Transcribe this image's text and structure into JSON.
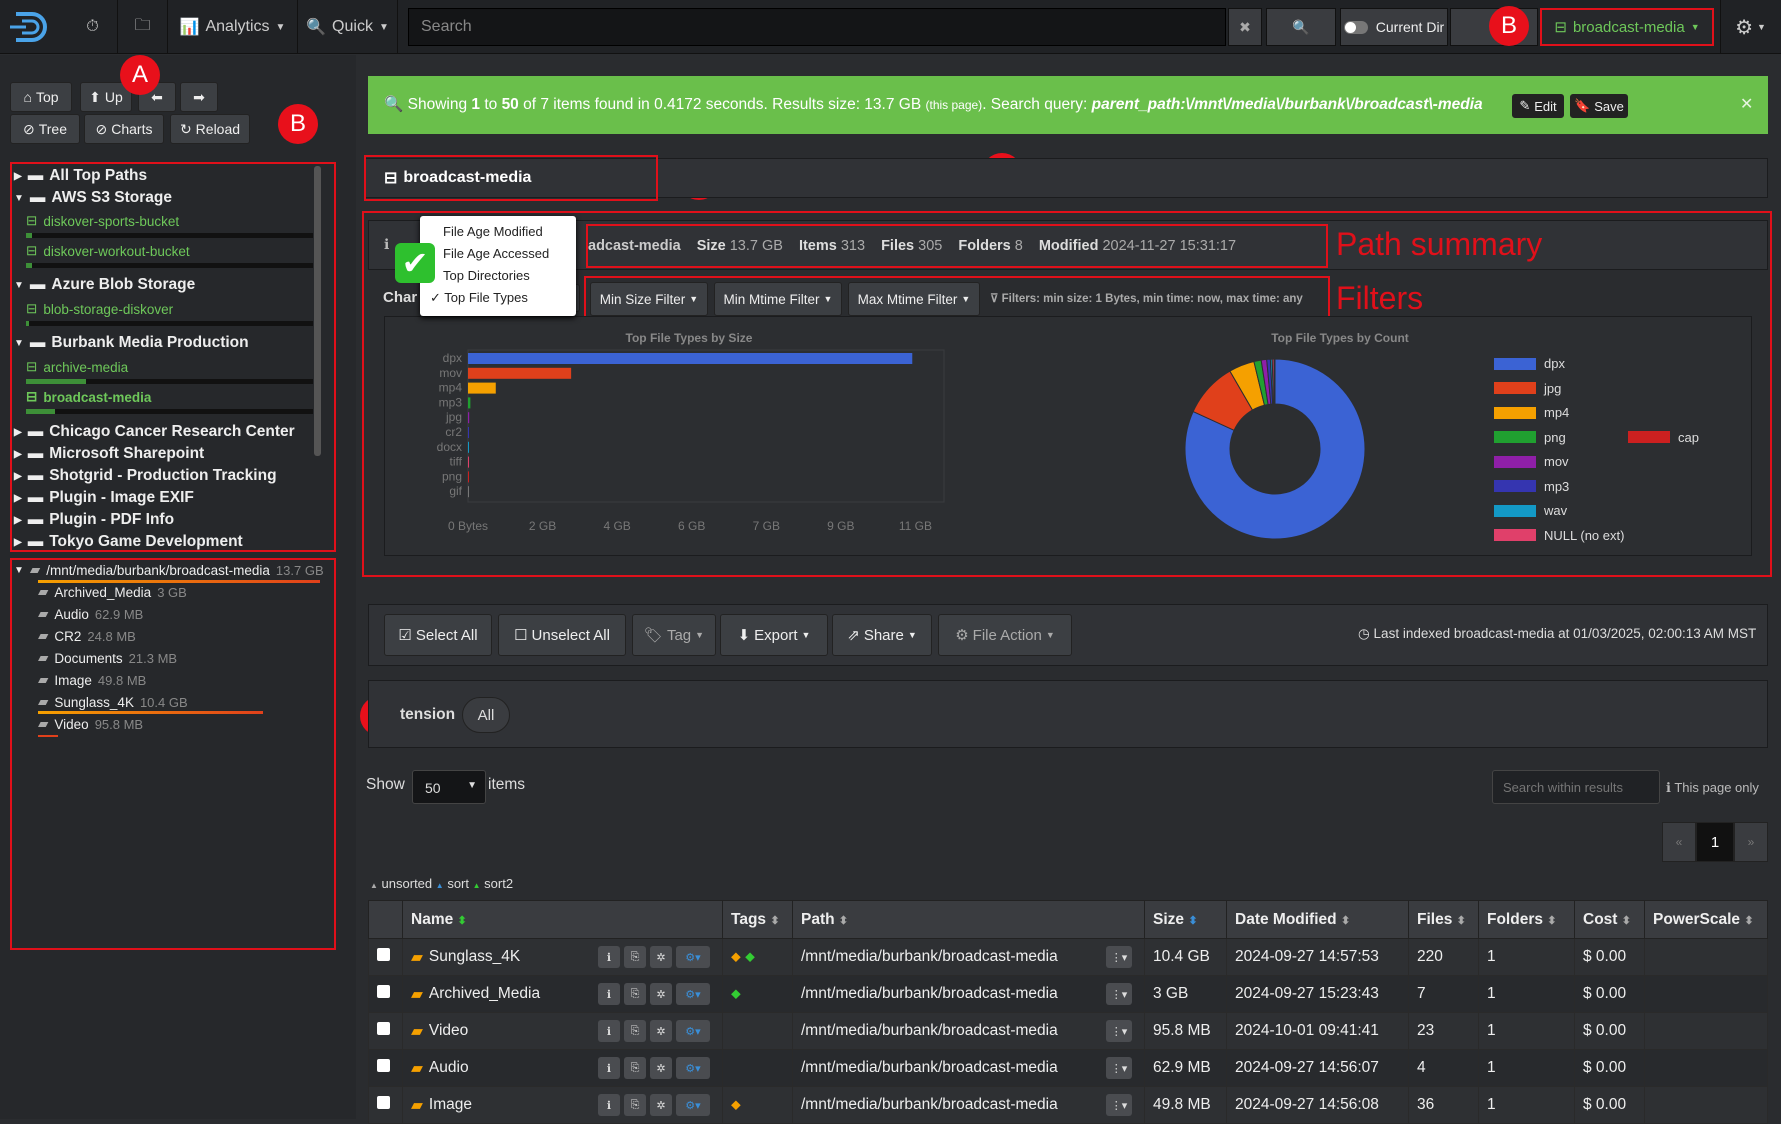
{
  "topbar": {
    "analytics": "Analytics",
    "quick": "Quick",
    "search_placeholder": "Search",
    "current_dir": "Current Dir",
    "index_select": "broadcast-media"
  },
  "sidebar": {
    "buttons": {
      "top": "Top",
      "up": "Up",
      "tree": "Tree",
      "charts": "Charts",
      "reload": "Reload"
    },
    "tree": [
      {
        "label": "All Top Paths"
      },
      {
        "label": "AWS S3 Storage"
      },
      {
        "label": "diskover-sports-bucket"
      },
      {
        "label": "diskover-workout-bucket"
      },
      {
        "label": "Azure Blob Storage"
      },
      {
        "label": "blob-storage-diskover"
      },
      {
        "label": "Burbank Media Production"
      },
      {
        "label": "archive-media"
      },
      {
        "label": "broadcast-media"
      },
      {
        "label": "Chicago Cancer Research Center"
      },
      {
        "label": "Microsoft Sharepoint"
      },
      {
        "label": "Shotgrid - Production Tracking"
      },
      {
        "label": "Plugin - Image EXIF"
      },
      {
        "label": "Plugin - PDF Info"
      },
      {
        "label": "Tokyo Game Development"
      }
    ],
    "dir_root": {
      "path": "/mnt/media/burbank/broadcast-media",
      "size": "13.7 GB"
    },
    "dirs": [
      {
        "name": "Archived_Media",
        "size": "3 GB"
      },
      {
        "name": "Audio",
        "size": "62.9 MB"
      },
      {
        "name": "CR2",
        "size": "24.8 MB"
      },
      {
        "name": "Documents",
        "size": "21.3 MB"
      },
      {
        "name": "Image",
        "size": "49.8 MB"
      },
      {
        "name": "Sunglass_4K",
        "size": "10.4 GB"
      },
      {
        "name": "Video",
        "size": "95.8 MB"
      }
    ]
  },
  "markers": {
    "a": "A",
    "b": "B",
    "c": "C",
    "d": "D",
    "e": "E"
  },
  "alert": {
    "prefix": "Showing ",
    "from": "1",
    "to_text": " to ",
    "to": "50",
    "of_text": " of 7 items found in 0.4172 seconds. Results size: 13.7 GB ",
    "small": "(this page)",
    "query_label": ". Search query: ",
    "query": "parent_path:\\/mnt\\/media\\/burbank\\/broadcast\\-media",
    "edit": "Edit",
    "save": "Save"
  },
  "path_header": "broadcast-media",
  "summary": {
    "name": "adcast-media",
    "size_label": "Size",
    "size": "13.7 GB",
    "items_label": "Items",
    "items": "313",
    "files_label": "Files",
    "files": "305",
    "folders_label": "Folders",
    "folders": "8",
    "modified_label": "Modified",
    "modified": "2024-11-27 15:31:17",
    "annot": "Path summary"
  },
  "dropdown": [
    "File Age Modified",
    "File Age Accessed",
    "Top Directories",
    "✓ Top File Types"
  ],
  "filters": {
    "chart_label": "Char",
    "min_size": "Min Size Filter",
    "min_mtime": "Min Mtime Filter",
    "max_mtime": "Max Mtime Filter",
    "info": "Filters: min size: 1 Bytes, min time: now, max time: any",
    "annot": "Filters"
  },
  "chart_data": [
    {
      "type": "bar",
      "title": "Top File Types by Size",
      "categories": [
        "dpx",
        "mov",
        "mp4",
        "mp3",
        "jpg",
        "cr2",
        "docx",
        "tiff",
        "png",
        "gif"
      ],
      "values": [
        11.2,
        2.6,
        0.7,
        0.06,
        0.03,
        0.02,
        0.01,
        0.01,
        0.005,
        0.002
      ],
      "x_ticks": [
        "0 Bytes",
        "2 GB",
        "4 GB",
        "6 GB",
        "7 GB",
        "9 GB",
        "11 GB"
      ],
      "xlim": [
        0,
        12
      ],
      "colors": [
        "#3b63d4",
        "#e0401b",
        "#f5a000",
        "#20a030",
        "#8f1fa8",
        "#3535b0",
        "#1399c6",
        "#e0406a",
        "#cc2020",
        "#777"
      ]
    },
    {
      "type": "pie",
      "title": "Top File Types by Count",
      "labels": [
        "dpx",
        "jpg",
        "mp4",
        "png",
        "mov",
        "mp3",
        "wav",
        "NULL (no ext)",
        "cap"
      ],
      "values": [
        250,
        30,
        14,
        4,
        3,
        2,
        1,
        1,
        0.5
      ],
      "colors": [
        "#3b63d4",
        "#e0401b",
        "#f5a000",
        "#20a030",
        "#8f1fa8",
        "#3535b0",
        "#1399c6",
        "#e0406a",
        "#cc2020"
      ]
    }
  ],
  "toolbar": {
    "select_all": "Select All",
    "unselect_all": "Unselect All",
    "tag": "Tag",
    "export": "Export",
    "share": "Share",
    "file_action": "File Action",
    "last_indexed": "Last indexed broadcast-media at 01/03/2025, 02:00:13 AM MST"
  },
  "extension": {
    "label": "tension",
    "all": "All"
  },
  "paging": {
    "show": "Show",
    "per_page": "50",
    "items": "items",
    "search_placeholder": "Search within results",
    "page_only": "This page only",
    "prev": "«",
    "page": "1",
    "next": "»"
  },
  "sort": {
    "unsorted": "unsorted",
    "sort": "sort",
    "sort2": "sort2"
  },
  "table": {
    "headers": [
      "Name",
      "Tags",
      "Path",
      "Size",
      "Date Modified",
      "Files",
      "Folders",
      "Cost",
      "PowerScale"
    ],
    "rows": [
      {
        "name": "Sunglass_4K",
        "path": "/mnt/media/burbank/broadcast-media",
        "size": "10.4 GB",
        "date": "2024-09-27 14:57:53",
        "files": "220",
        "folders": "1",
        "cost": "$ 0.00"
      },
      {
        "name": "Archived_Media",
        "path": "/mnt/media/burbank/broadcast-media",
        "size": "3 GB",
        "date": "2024-09-27 15:23:43",
        "files": "7",
        "folders": "1",
        "cost": "$ 0.00"
      },
      {
        "name": "Video",
        "path": "/mnt/media/burbank/broadcast-media",
        "size": "95.8 MB",
        "date": "2024-10-01 09:41:41",
        "files": "23",
        "folders": "1",
        "cost": "$ 0.00"
      },
      {
        "name": "Audio",
        "path": "/mnt/media/burbank/broadcast-media",
        "size": "62.9 MB",
        "date": "2024-09-27 14:56:07",
        "files": "4",
        "folders": "1",
        "cost": "$ 0.00"
      },
      {
        "name": "Image",
        "path": "/mnt/media/burbank/broadcast-media",
        "size": "49.8 MB",
        "date": "2024-09-27 14:56:08",
        "files": "36",
        "folders": "1",
        "cost": "$ 0.00"
      }
    ]
  }
}
